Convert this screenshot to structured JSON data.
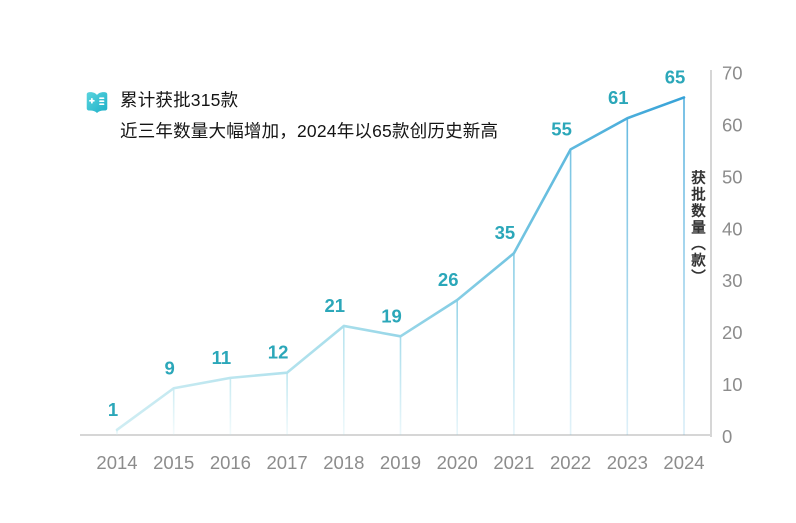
{
  "header": {
    "icon": "book-plus-icon",
    "line1": "累计获批315款",
    "line2": "近三年数量大幅增加，2024年以65款创历史新高"
  },
  "chart_data": {
    "type": "line",
    "categories": [
      "2014",
      "2015",
      "2016",
      "2017",
      "2018",
      "2019",
      "2020",
      "2021",
      "2022",
      "2023",
      "2024"
    ],
    "values": [
      1,
      9,
      11,
      12,
      21,
      19,
      26,
      35,
      55,
      61,
      65
    ],
    "title": "",
    "xlabel": "",
    "ylabel": "获批数量（款）",
    "ylim": [
      0,
      70
    ],
    "yticks": [
      0,
      10,
      20,
      30,
      40,
      50,
      60,
      70
    ],
    "grid": false,
    "legend_position": "none",
    "annotations": "value label above each data point; vertical drop line from each point to baseline",
    "colors": {
      "line_gradient": [
        "#cfedf3",
        "#a8deeb",
        "#74c5e1",
        "#36a2d8"
      ],
      "value_label": "#2ba7b9",
      "axis_line": "#d6d6d6",
      "tick_text": "#8c8c8c",
      "axis_title_text": "#333333",
      "icon_teal_top": "#59d4de",
      "icon_teal_bottom": "#1fb0c8"
    }
  }
}
